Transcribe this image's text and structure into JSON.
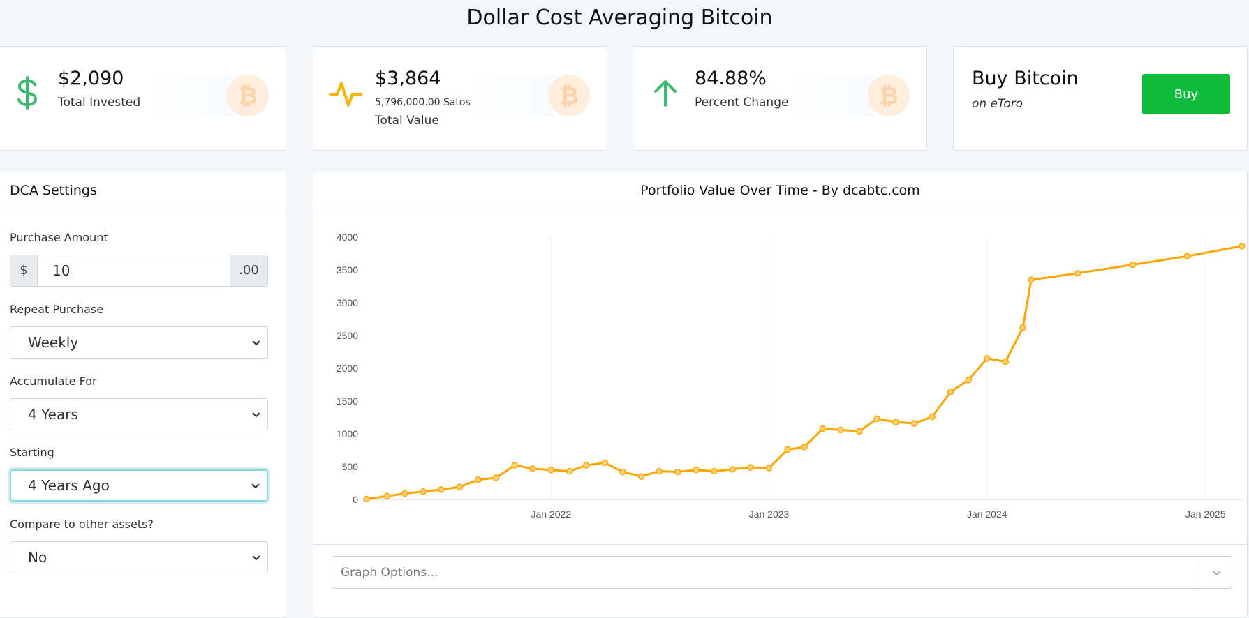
{
  "page": {
    "title": "Dollar Cost Averaging Bitcoin"
  },
  "stats": {
    "invested": {
      "value": "$2,090",
      "label": "Total Invested",
      "icon": "dollar-icon",
      "color": "#3cb96a"
    },
    "value": {
      "value": "$3,864",
      "sub": "5,796,000.00 Satoshis",
      "label": "Total Value",
      "icon": "pulse-icon",
      "color": "#f4b400"
    },
    "change": {
      "value": "84.88%",
      "label": "Percent Change",
      "icon": "arrow-up-icon",
      "color": "#3cb96a"
    }
  },
  "buy_card": {
    "title": "Buy Bitcoin",
    "subtitle": "on eToro",
    "button_label": "Buy",
    "button_color": "#0ebc3a"
  },
  "settings": {
    "title": "DCA Settings",
    "purchase_amount": {
      "label": "Purchase Amount",
      "prefix": "$",
      "value": "10",
      "suffix": ".00"
    },
    "repeat": {
      "label": "Repeat Purchase",
      "value": "Weekly"
    },
    "accumulate": {
      "label": "Accumulate For",
      "value": "4 Years"
    },
    "starting": {
      "label": "Starting",
      "value": "4 Years Ago"
    },
    "compare": {
      "label": "Compare to other assets?",
      "value": "No"
    }
  },
  "chart_panel": {
    "title": "Portfolio Value Over Time - By dcabtc.com",
    "options_placeholder": "Graph Options..."
  },
  "chart_data": {
    "type": "line",
    "title": "Portfolio Value Over Time - By dcabtc.com",
    "xlabel": "",
    "ylabel": "",
    "color": "#ffa500",
    "x_ticks": [
      "Jan 2022",
      "Jan 2023",
      "Jan 2024",
      "Jan 2025"
    ],
    "y_ticks": [
      "0",
      "500",
      "1000",
      "1500",
      "2000",
      "2500",
      "3000",
      "3500",
      "4000"
    ],
    "ylim": [
      0,
      4000
    ],
    "xlim": [
      "2021-02-26",
      "2025-03-03"
    ],
    "grid": "vertical",
    "series": [
      {
        "x": [
          "2021-02-26",
          "2021-04-01",
          "2021-05-01",
          "2021-06-01",
          "2021-07-01",
          "2021-08-01",
          "2021-09-01",
          "2021-10-01",
          "2021-11-01",
          "2021-12-01",
          "2022-01-01",
          "2022-02-01",
          "2022-03-01",
          "2022-04-01",
          "2022-05-01",
          "2022-06-01",
          "2022-07-01",
          "2022-08-01",
          "2022-09-01",
          "2022-10-01",
          "2022-11-01",
          "2022-12-01",
          "2023-01-01",
          "2023-02-01",
          "2023-03-01",
          "2023-04-01",
          "2023-05-01",
          "2023-06-01",
          "2023-07-01",
          "2023-08-01",
          "2023-09-01",
          "2023-10-01",
          "2023-11-01",
          "2023-12-01",
          "2024-01-01",
          "2024-02-01",
          "2024-03-01",
          "2024-03-15",
          "2024-06-01",
          "2024-09-01",
          "2024-12-01",
          "2025-03-03"
        ],
        "y": [
          5,
          50,
          90,
          120,
          150,
          190,
          300,
          330,
          520,
          470,
          450,
          430,
          520,
          560,
          420,
          350,
          430,
          420,
          450,
          430,
          460,
          490,
          480,
          760,
          800,
          1080,
          1060,
          1040,
          1230,
          1180,
          1160,
          1260,
          1640,
          1820,
          2150,
          2100,
          2620,
          3350,
          3450,
          3580,
          3710,
          3864
        ]
      }
    ]
  }
}
